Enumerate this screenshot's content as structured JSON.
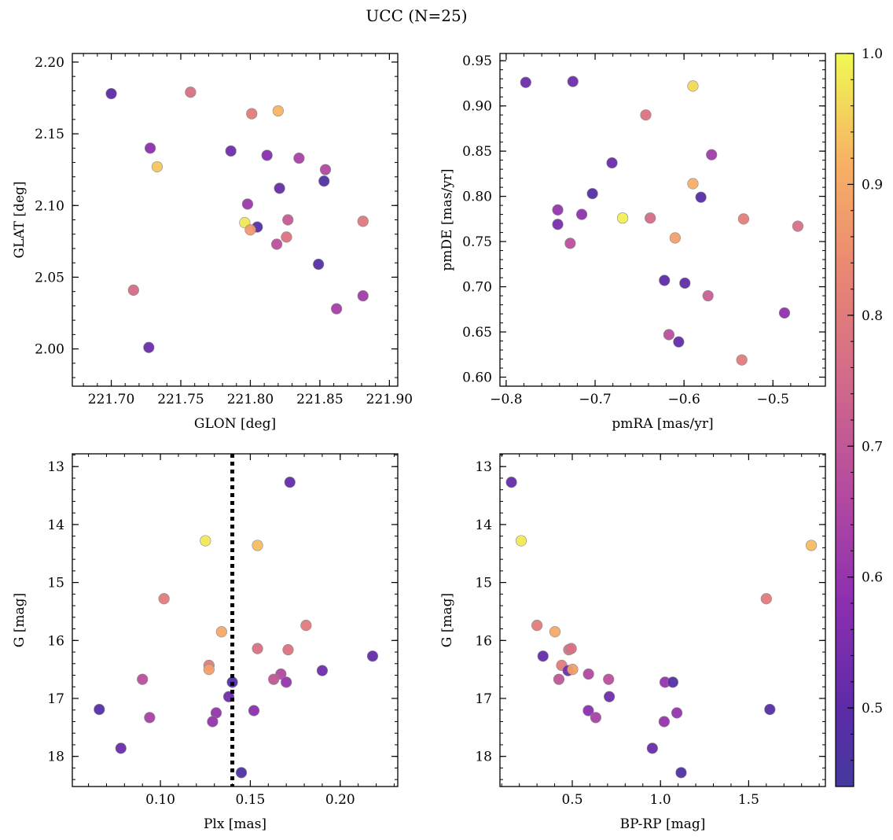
{
  "figure": {
    "title": "UCC (N=25)"
  },
  "colorbar": {
    "ticks": [
      "0.5",
      "0.6",
      "0.7",
      "0.8",
      "0.9",
      "1.0"
    ],
    "min": 0.44,
    "max": 1.0,
    "colormap": "plasma"
  },
  "chart_data": [
    {
      "type": "scatter",
      "id": "glon-glat",
      "xlabel": "GLON [deg]",
      "ylabel": "GLAT [deg]",
      "xlim": [
        221.672,
        221.906
      ],
      "ylim": [
        1.974,
        2.206
      ],
      "y_inverted": false,
      "xticks": [
        221.7,
        221.75,
        221.8,
        221.85,
        221.9
      ],
      "xtick_labels": [
        "221.70",
        "221.75",
        "221.80",
        "221.85",
        "221.90"
      ],
      "yticks": [
        2.0,
        2.05,
        2.1,
        2.15,
        2.2
      ],
      "ytick_labels": [
        "2.00",
        "2.05",
        "2.10",
        "2.15",
        "2.20"
      ],
      "x_minor_step": 0.01,
      "y_minor_step": 0.01,
      "points": [
        {
          "x": 221.7,
          "y": 2.178,
          "c": 0.5
        },
        {
          "x": 221.757,
          "y": 2.179,
          "c": 0.77
        },
        {
          "x": 221.801,
          "y": 2.164,
          "c": 0.8
        },
        {
          "x": 221.82,
          "y": 2.166,
          "c": 0.92
        },
        {
          "x": 221.728,
          "y": 2.14,
          "c": 0.58
        },
        {
          "x": 221.733,
          "y": 2.127,
          "c": 0.94
        },
        {
          "x": 221.786,
          "y": 2.138,
          "c": 0.53
        },
        {
          "x": 221.812,
          "y": 2.135,
          "c": 0.57
        },
        {
          "x": 221.835,
          "y": 2.133,
          "c": 0.64
        },
        {
          "x": 221.854,
          "y": 2.125,
          "c": 0.66
        },
        {
          "x": 221.853,
          "y": 2.117,
          "c": 0.47
        },
        {
          "x": 221.821,
          "y": 2.112,
          "c": 0.52
        },
        {
          "x": 221.798,
          "y": 2.101,
          "c": 0.61
        },
        {
          "x": 221.796,
          "y": 2.088,
          "c": 0.98
        },
        {
          "x": 221.805,
          "y": 2.085,
          "c": 0.48
        },
        {
          "x": 221.8,
          "y": 2.083,
          "c": 0.87
        },
        {
          "x": 221.827,
          "y": 2.09,
          "c": 0.71
        },
        {
          "x": 221.881,
          "y": 2.089,
          "c": 0.79
        },
        {
          "x": 221.826,
          "y": 2.078,
          "c": 0.78
        },
        {
          "x": 221.819,
          "y": 2.073,
          "c": 0.68
        },
        {
          "x": 221.849,
          "y": 2.059,
          "c": 0.48
        },
        {
          "x": 221.716,
          "y": 2.041,
          "c": 0.76
        },
        {
          "x": 221.862,
          "y": 2.028,
          "c": 0.63
        },
        {
          "x": 221.881,
          "y": 2.037,
          "c": 0.62
        },
        {
          "x": 221.727,
          "y": 2.001,
          "c": 0.52
        }
      ]
    },
    {
      "type": "scatter",
      "id": "pmra-pmde",
      "xlabel": "pmRA [mas/yr]",
      "ylabel": "pmDE [mas/yr]",
      "xlim": [
        -0.807,
        -0.441
      ],
      "ylim": [
        0.59,
        0.958
      ],
      "y_inverted": false,
      "xticks": [
        -0.8,
        -0.7,
        -0.6,
        -0.5
      ],
      "xtick_labels": [
        "−0.8",
        "−0.7",
        "−0.6",
        "−0.5"
      ],
      "yticks": [
        0.6,
        0.65,
        0.7,
        0.75,
        0.8,
        0.85,
        0.9,
        0.95
      ],
      "ytick_labels": [
        "0.60",
        "0.65",
        "0.70",
        "0.75",
        "0.80",
        "0.85",
        "0.90",
        "0.95"
      ],
      "x_minor_step": 0.02,
      "y_minor_step": 0.01,
      "points": [
        {
          "x": -0.778,
          "y": 0.926,
          "c": 0.53
        },
        {
          "x": -0.725,
          "y": 0.927,
          "c": 0.53
        },
        {
          "x": -0.59,
          "y": 0.922,
          "c": 0.96
        },
        {
          "x": -0.643,
          "y": 0.89,
          "c": 0.78
        },
        {
          "x": -0.569,
          "y": 0.846,
          "c": 0.62
        },
        {
          "x": -0.681,
          "y": 0.837,
          "c": 0.52
        },
        {
          "x": -0.59,
          "y": 0.814,
          "c": 0.91
        },
        {
          "x": -0.703,
          "y": 0.803,
          "c": 0.48
        },
        {
          "x": -0.581,
          "y": 0.799,
          "c": 0.49
        },
        {
          "x": -0.742,
          "y": 0.785,
          "c": 0.6
        },
        {
          "x": -0.715,
          "y": 0.78,
          "c": 0.59
        },
        {
          "x": -0.669,
          "y": 0.776,
          "c": 0.99
        },
        {
          "x": -0.638,
          "y": 0.776,
          "c": 0.76
        },
        {
          "x": -0.533,
          "y": 0.775,
          "c": 0.81
        },
        {
          "x": -0.472,
          "y": 0.767,
          "c": 0.77
        },
        {
          "x": -0.742,
          "y": 0.769,
          "c": 0.55
        },
        {
          "x": -0.61,
          "y": 0.754,
          "c": 0.88
        },
        {
          "x": -0.728,
          "y": 0.748,
          "c": 0.68
        },
        {
          "x": -0.622,
          "y": 0.707,
          "c": 0.5
        },
        {
          "x": -0.599,
          "y": 0.704,
          "c": 0.51
        },
        {
          "x": -0.573,
          "y": 0.69,
          "c": 0.72
        },
        {
          "x": -0.487,
          "y": 0.671,
          "c": 0.59
        },
        {
          "x": -0.617,
          "y": 0.647,
          "c": 0.68
        },
        {
          "x": -0.606,
          "y": 0.639,
          "c": 0.51
        },
        {
          "x": -0.535,
          "y": 0.619,
          "c": 0.8
        }
      ]
    },
    {
      "type": "scatter",
      "id": "plx-g",
      "xlabel": "Plx [mas]",
      "ylabel": "G [mag]",
      "xlim": [
        0.051,
        0.232
      ],
      "ylim": [
        18.52,
        12.78
      ],
      "y_inverted": true,
      "xticks": [
        0.1,
        0.15,
        0.2
      ],
      "xtick_labels": [
        "0.10",
        "0.15",
        "0.20"
      ],
      "yticks": [
        13,
        14,
        15,
        16,
        17,
        18
      ],
      "ytick_labels": [
        "13",
        "14",
        "15",
        "16",
        "17",
        "18"
      ],
      "x_minor_step": 0.01,
      "y_minor_step": 0.2,
      "vline": {
        "x": 0.14,
        "style": "dotted"
      },
      "points": [
        {
          "x": 0.172,
          "y": 13.27,
          "c": 0.51
        },
        {
          "x": 0.125,
          "y": 14.28,
          "c": 0.98
        },
        {
          "x": 0.154,
          "y": 14.36,
          "c": 0.93
        },
        {
          "x": 0.102,
          "y": 15.28,
          "c": 0.8
        },
        {
          "x": 0.181,
          "y": 15.74,
          "c": 0.8
        },
        {
          "x": 0.134,
          "y": 15.85,
          "c": 0.9
        },
        {
          "x": 0.154,
          "y": 16.14,
          "c": 0.77
        },
        {
          "x": 0.171,
          "y": 16.16,
          "c": 0.78
        },
        {
          "x": 0.218,
          "y": 16.27,
          "c": 0.51
        },
        {
          "x": 0.127,
          "y": 16.43,
          "c": 0.8
        },
        {
          "x": 0.127,
          "y": 16.5,
          "c": 0.88
        },
        {
          "x": 0.19,
          "y": 16.52,
          "c": 0.53
        },
        {
          "x": 0.167,
          "y": 16.58,
          "c": 0.66
        },
        {
          "x": 0.09,
          "y": 16.67,
          "c": 0.68
        },
        {
          "x": 0.163,
          "y": 16.67,
          "c": 0.7
        },
        {
          "x": 0.17,
          "y": 16.72,
          "c": 0.6
        },
        {
          "x": 0.14,
          "y": 16.72,
          "c": 0.48
        },
        {
          "x": 0.138,
          "y": 16.97,
          "c": 0.53
        },
        {
          "x": 0.066,
          "y": 17.19,
          "c": 0.48
        },
        {
          "x": 0.152,
          "y": 17.21,
          "c": 0.58
        },
        {
          "x": 0.131,
          "y": 17.25,
          "c": 0.6
        },
        {
          "x": 0.094,
          "y": 17.33,
          "c": 0.64
        },
        {
          "x": 0.129,
          "y": 17.4,
          "c": 0.6
        },
        {
          "x": 0.078,
          "y": 17.86,
          "c": 0.52
        },
        {
          "x": 0.145,
          "y": 18.28,
          "c": 0.47
        }
      ]
    },
    {
      "type": "scatter",
      "id": "bprp-g",
      "xlabel": "BP-RP [mag]",
      "ylabel": "G [mag]",
      "xlim": [
        0.09,
        1.935
      ],
      "ylim": [
        18.52,
        12.78
      ],
      "y_inverted": true,
      "xticks": [
        0.5,
        1.0,
        1.5
      ],
      "xtick_labels": [
        "0.5",
        "1.0",
        "1.5"
      ],
      "yticks": [
        13,
        14,
        15,
        16,
        17,
        18
      ],
      "ytick_labels": [
        "13",
        "14",
        "15",
        "16",
        "17",
        "18"
      ],
      "x_minor_step": 0.1,
      "y_minor_step": 0.2,
      "points": [
        {
          "x": 0.155,
          "y": 13.27,
          "c": 0.51
        },
        {
          "x": 0.21,
          "y": 14.28,
          "c": 0.98
        },
        {
          "x": 1.855,
          "y": 14.36,
          "c": 0.93
        },
        {
          "x": 1.6,
          "y": 15.28,
          "c": 0.8
        },
        {
          "x": 0.3,
          "y": 15.74,
          "c": 0.8
        },
        {
          "x": 0.402,
          "y": 15.85,
          "c": 0.9
        },
        {
          "x": 0.48,
          "y": 16.16,
          "c": 0.78
        },
        {
          "x": 0.494,
          "y": 16.14,
          "c": 0.77
        },
        {
          "x": 0.334,
          "y": 16.27,
          "c": 0.51
        },
        {
          "x": 0.44,
          "y": 16.43,
          "c": 0.8
        },
        {
          "x": 0.476,
          "y": 16.52,
          "c": 0.53
        },
        {
          "x": 0.502,
          "y": 16.5,
          "c": 0.88
        },
        {
          "x": 0.592,
          "y": 16.58,
          "c": 0.66
        },
        {
          "x": 0.424,
          "y": 16.67,
          "c": 0.7
        },
        {
          "x": 0.706,
          "y": 16.67,
          "c": 0.68
        },
        {
          "x": 1.026,
          "y": 16.72,
          "c": 0.6
        },
        {
          "x": 1.07,
          "y": 16.72,
          "c": 0.48
        },
        {
          "x": 0.71,
          "y": 16.97,
          "c": 0.53
        },
        {
          "x": 1.62,
          "y": 17.19,
          "c": 0.48
        },
        {
          "x": 0.591,
          "y": 17.21,
          "c": 0.58
        },
        {
          "x": 1.093,
          "y": 17.25,
          "c": 0.6
        },
        {
          "x": 0.633,
          "y": 17.33,
          "c": 0.64
        },
        {
          "x": 1.021,
          "y": 17.4,
          "c": 0.6
        },
        {
          "x": 0.954,
          "y": 17.86,
          "c": 0.52
        },
        {
          "x": 1.117,
          "y": 18.28,
          "c": 0.47
        }
      ]
    }
  ]
}
